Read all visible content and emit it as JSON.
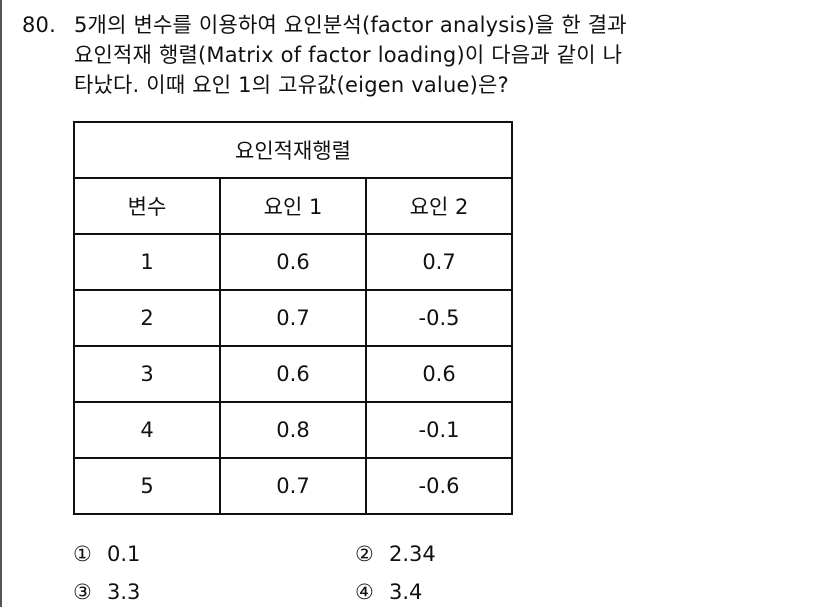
{
  "question": {
    "number": "80.",
    "lines": [
      "5개의 변수를 이용하여 요인분석(factor analysis)을 한 결과",
      "요인적재 행렬(Matrix of factor loading)이 다음과 같이 나",
      "타났다. 이때 요인 1의 고유값(eigen value)은?"
    ]
  },
  "table": {
    "title": "요인적재행렬",
    "headers": [
      "변수",
      "요인 1",
      "요인 2"
    ],
    "rows": [
      [
        "1",
        "0.6",
        "0.7"
      ],
      [
        "2",
        "0.7",
        "-0.5"
      ],
      [
        "3",
        "0.6",
        "0.6"
      ],
      [
        "4",
        "0.8",
        "-0.1"
      ],
      [
        "5",
        "0.7",
        "-0.6"
      ]
    ]
  },
  "choices": [
    {
      "mark": "①",
      "text": "0.1"
    },
    {
      "mark": "②",
      "text": "2.34"
    },
    {
      "mark": "③",
      "text": "3.3"
    },
    {
      "mark": "④",
      "text": "3.4"
    }
  ]
}
